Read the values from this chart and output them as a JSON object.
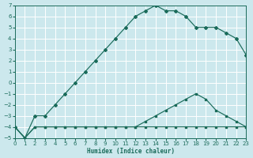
{
  "xlabel": "Humidex (Indice chaleur)",
  "bg_color": "#cce8ed",
  "grid_color": "#b8d8dd",
  "line_color": "#1a6b5a",
  "xlim": [
    0,
    23
  ],
  "ylim": [
    -5,
    7
  ],
  "xticks": [
    0,
    1,
    2,
    3,
    4,
    5,
    6,
    7,
    8,
    9,
    10,
    11,
    12,
    13,
    14,
    15,
    16,
    17,
    18,
    19,
    20,
    21,
    22,
    23
  ],
  "yticks": [
    -5,
    -4,
    -3,
    -2,
    -1,
    0,
    1,
    2,
    3,
    4,
    5,
    6,
    7
  ],
  "s1_x": [
    0,
    1,
    2,
    3,
    4,
    5,
    6,
    7,
    8,
    9,
    10,
    11,
    12,
    13,
    14,
    15,
    16,
    17,
    18,
    19,
    20,
    21,
    22,
    23
  ],
  "s1_y": [
    -4,
    -5,
    -4,
    -4,
    -4,
    -4,
    -4,
    -4,
    -4,
    -4,
    -4,
    -4,
    -4,
    -4,
    -4,
    -4,
    -4,
    -4,
    -4,
    -4,
    -4,
    -4,
    -4,
    -4
  ],
  "s2_x": [
    0,
    1,
    2,
    3,
    4,
    5,
    6,
    7,
    8,
    9,
    10,
    11,
    12,
    13,
    14,
    15,
    16,
    17,
    18,
    19,
    20,
    21,
    22,
    23
  ],
  "s2_y": [
    -4,
    -5,
    -4,
    -4,
    -4,
    -4,
    -4,
    -4,
    -4,
    -4,
    -4,
    -4,
    -4,
    -3.5,
    -3,
    -2.5,
    -2,
    -1.5,
    -1,
    -1.5,
    -2.5,
    -3,
    -3.5,
    -4
  ],
  "s3_x": [
    0,
    1,
    2,
    3,
    4,
    5,
    6,
    7,
    8,
    9,
    10,
    11,
    12,
    13,
    14,
    15,
    16,
    17,
    18,
    19,
    20,
    21,
    22,
    23
  ],
  "s3_y": [
    -4,
    -5,
    -3,
    -3,
    -2,
    -1,
    0,
    1,
    2,
    3,
    4,
    5,
    6,
    6.5,
    7,
    6.5,
    6.5,
    6,
    5,
    5,
    5,
    4.5,
    4,
    2.5
  ]
}
